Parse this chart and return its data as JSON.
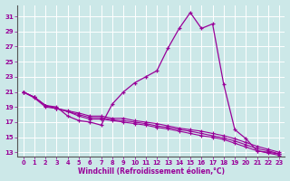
{
  "xlabel": "Windchill (Refroidissement éolien,°C)",
  "background_color": "#cce8e8",
  "line_color": "#990099",
  "xlim": [
    -0.5,
    23.5
  ],
  "ylim": [
    12.5,
    32.5
  ],
  "yticks": [
    13,
    15,
    17,
    19,
    21,
    23,
    25,
    27,
    29,
    31
  ],
  "xticks": [
    0,
    1,
    2,
    3,
    4,
    5,
    6,
    7,
    8,
    9,
    10,
    11,
    12,
    13,
    14,
    15,
    16,
    17,
    18,
    19,
    20,
    21,
    22,
    23
  ],
  "series": [
    [
      21.0,
      20.3,
      19.2,
      19.0,
      17.8,
      17.2,
      17.0,
      16.6,
      19.4,
      21.0,
      22.2,
      23.0,
      23.8,
      26.8,
      29.4,
      31.5,
      29.4,
      30.0,
      22.0,
      16.0,
      14.8,
      13.2,
      13.0,
      12.8
    ],
    [
      21.0,
      20.3,
      19.2,
      18.8,
      18.5,
      18.2,
      17.8,
      17.8,
      17.5,
      17.5,
      17.2,
      17.0,
      16.8,
      16.5,
      16.2,
      16.0,
      15.8,
      15.5,
      15.2,
      14.8,
      14.3,
      13.8,
      13.4,
      13.0
    ],
    [
      21.0,
      20.3,
      19.2,
      18.8,
      18.4,
      18.0,
      17.6,
      17.6,
      17.3,
      17.2,
      17.0,
      16.8,
      16.5,
      16.3,
      16.0,
      15.8,
      15.5,
      15.2,
      14.9,
      14.5,
      14.0,
      13.5,
      13.2,
      12.8
    ],
    [
      21.0,
      20.2,
      19.0,
      18.8,
      18.4,
      17.8,
      17.4,
      17.4,
      17.2,
      17.0,
      16.8,
      16.6,
      16.3,
      16.1,
      15.8,
      15.5,
      15.2,
      15.0,
      14.7,
      14.2,
      13.7,
      13.2,
      12.9,
      12.6
    ]
  ]
}
